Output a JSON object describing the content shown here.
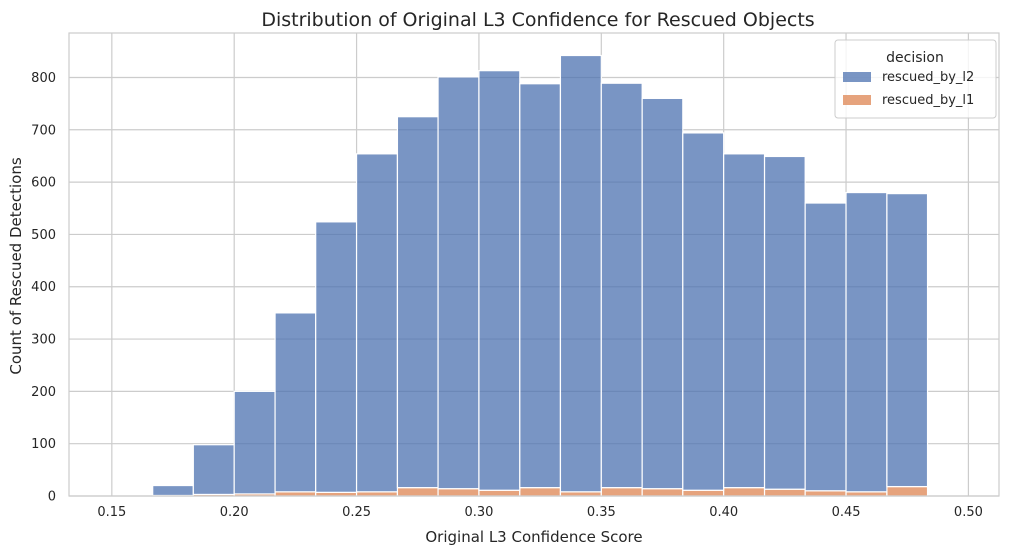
{
  "chart_data": {
    "type": "bar",
    "title": "Distribution of Original L3 Confidence for Rescued Objects",
    "xlabel": "Original L3 Confidence Score",
    "ylabel": "Count of Rescued Detections",
    "xlim": [
      0.1325,
      0.5125
    ],
    "ylim": [
      0,
      885
    ],
    "x_ticks": [
      0.15,
      0.2,
      0.25,
      0.3,
      0.35,
      0.4,
      0.45,
      0.5
    ],
    "x_tick_labels": [
      "0.15",
      "0.20",
      "0.25",
      "0.30",
      "0.35",
      "0.40",
      "0.45",
      "0.50"
    ],
    "y_ticks": [
      0,
      100,
      200,
      300,
      400,
      500,
      600,
      700,
      800
    ],
    "y_tick_labels": [
      "0",
      "100",
      "200",
      "300",
      "400",
      "500",
      "600",
      "700",
      "800"
    ],
    "grid": true,
    "stacked": true,
    "legend": {
      "title": "decision",
      "position": "top-right"
    },
    "bins": [
      [
        0.1667,
        0.1833
      ],
      [
        0.1833,
        0.2
      ],
      [
        0.2,
        0.2167
      ],
      [
        0.2167,
        0.2333
      ],
      [
        0.2333,
        0.25
      ],
      [
        0.25,
        0.2667
      ],
      [
        0.2667,
        0.2833
      ],
      [
        0.2833,
        0.3
      ],
      [
        0.3,
        0.3167
      ],
      [
        0.3167,
        0.3333
      ],
      [
        0.3333,
        0.35
      ],
      [
        0.35,
        0.3667
      ],
      [
        0.3667,
        0.3833
      ],
      [
        0.3833,
        0.4
      ],
      [
        0.4,
        0.4167
      ],
      [
        0.4167,
        0.4333
      ],
      [
        0.4333,
        0.45
      ],
      [
        0.45,
        0.4667
      ],
      [
        0.4667,
        0.4833
      ],
      [
        0.4833,
        0.5
      ]
    ],
    "series": [
      {
        "name": "rescued_by_l1",
        "color": "#dd8452",
        "values": [
          1,
          3,
          4,
          8,
          7,
          8,
          16,
          14,
          11,
          16,
          8,
          16,
          14,
          11,
          16,
          13,
          10,
          8,
          18,
          0
        ]
      },
      {
        "name": "rescued_by_l2",
        "color": "#4c72b0",
        "values": [
          19,
          95,
          196,
          342,
          517,
          646,
          709,
          787,
          802,
          772,
          834,
          773,
          746,
          683,
          638,
          636,
          550,
          572,
          560,
          0
        ]
      }
    ]
  }
}
